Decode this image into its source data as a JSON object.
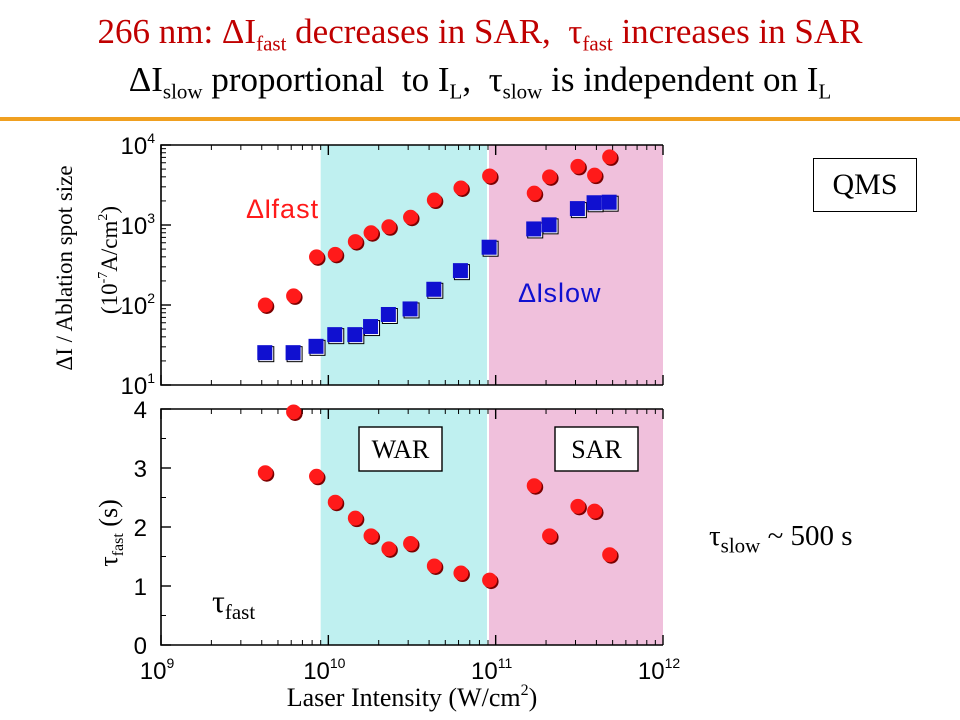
{
  "title": {
    "line1_prefix": "266 nm: ΔI",
    "line1_sub1": "fast",
    "line1_mid": " decreases in SAR,  τ",
    "line1_sub2": "fast",
    "line1_suffix": " increases in SAR",
    "line2_prefix": "ΔI",
    "line2_sub1": "slow",
    "line2_mid": " proportional  to I",
    "line2_sub2": "L",
    "line2_mid2": ",  τ",
    "line2_sub3": "slow",
    "line2_mid3": " is independent on I",
    "line2_sub4": "L"
  },
  "qms_label": "QMS",
  "tau_slow_note": {
    "prefix": "τ",
    "sub": "slow",
    "suffix": " ~ 500 s"
  },
  "colors": {
    "fast": "#ff1a1a",
    "slow": "#1010d0",
    "war_region": "#bff0f0",
    "sar_region": "#f0c0dc",
    "title_red": "#c00000",
    "rule": "#f0a020"
  },
  "chart_data": [
    {
      "type": "scatter",
      "panel": "top",
      "xscale": "log",
      "yscale": "log",
      "xlim": [
        1000000000.0,
        1000000000000.0
      ],
      "ylim": [
        10,
        10000
      ],
      "ylabel_line1": "ΔI / Ablation spot size",
      "ylabel_line2_prefix": "(10",
      "ylabel_line2_exp": "-7",
      "ylabel_line2_mid": "A/cm",
      "ylabel_line2_exp2": "2",
      "ylabel_line2_suffix": ")",
      "y_ticks": [
        {
          "value": 10,
          "base": "10",
          "exp": "1"
        },
        {
          "value": 100,
          "base": "10",
          "exp": "2"
        },
        {
          "value": 1000,
          "base": "10",
          "exp": "3"
        },
        {
          "value": 10000,
          "base": "10",
          "exp": "4"
        }
      ],
      "regions": [
        {
          "name": "WAR",
          "x_from": 9000000000.0,
          "x_to": 90000000000.0
        },
        {
          "name": "SAR",
          "x_from": 90000000000.0,
          "x_to": 1000000000000.0
        }
      ],
      "series": [
        {
          "name": "ΔI",
          "name_sub": "fast",
          "marker": "circle",
          "x": [
            4200000000.0,
            6200000000.0,
            8500000000.0,
            11000000000.0,
            14500000000.0,
            18000000000.0,
            23000000000.0,
            31000000000.0,
            43000000000.0,
            62000000000.0,
            92000000000.0,
            170000000000.0,
            210000000000.0,
            310000000000.0,
            390000000000.0,
            480000000000.0
          ],
          "y": [
            100,
            130,
            400,
            430,
            620,
            800,
            950,
            1250,
            2050,
            2900,
            4100,
            2500,
            4000,
            5400,
            4200,
            7100
          ]
        },
        {
          "name": "ΔI",
          "name_sub": "slow",
          "marker": "square",
          "x": [
            4200000000.0,
            6200000000.0,
            8500000000.0,
            11000000000.0,
            14500000000.0,
            18000000000.0,
            23000000000.0,
            31000000000.0,
            43000000000.0,
            62000000000.0,
            92000000000.0,
            170000000000.0,
            210000000000.0,
            310000000000.0,
            390000000000.0,
            480000000000.0
          ],
          "y": [
            25,
            25,
            30,
            42,
            42,
            53,
            75,
            88,
            155,
            265,
            520,
            880,
            990,
            1580,
            1870,
            1900
          ]
        }
      ]
    },
    {
      "type": "scatter",
      "panel": "bottom",
      "xscale": "log",
      "yscale": "linear",
      "xlim": [
        1000000000.0,
        1000000000000.0
      ],
      "ylim": [
        0,
        4
      ],
      "xlabel": "Laser Intensity (W/cm",
      "xlabel_exp": "2",
      "xlabel_suffix": ")",
      "ylabel": "τ",
      "ylabel_sub": "fast",
      "ylabel_unit": " (s)",
      "y_ticks": [
        "0",
        "1",
        "2",
        "3",
        "4"
      ],
      "x_ticks": [
        {
          "value": 1000000000.0,
          "base": "10",
          "exp": "9"
        },
        {
          "value": 10000000000.0,
          "base": "10",
          "exp": "10"
        },
        {
          "value": 100000000000.0,
          "base": "10",
          "exp": "11"
        },
        {
          "value": 1000000000000.0,
          "base": "10",
          "exp": "12"
        }
      ],
      "regions": [
        {
          "name": "WAR",
          "x_from": 9000000000.0,
          "x_to": 90000000000.0
        },
        {
          "name": "SAR",
          "x_from": 90000000000.0,
          "x_to": 1000000000000.0
        }
      ],
      "region_labels": [
        "WAR",
        "SAR"
      ],
      "series": [
        {
          "name": "τ",
          "name_sub": "fast",
          "marker": "circle",
          "x": [
            4200000000.0,
            6200000000.0,
            8500000000.0,
            11000000000.0,
            14500000000.0,
            18000000000.0,
            23000000000.0,
            31000000000.0,
            43000000000.0,
            62000000000.0,
            92000000000.0,
            170000000000.0,
            210000000000.0,
            310000000000.0,
            390000000000.0,
            480000000000.0
          ],
          "y": [
            2.92,
            3.95,
            2.86,
            2.42,
            2.15,
            1.85,
            1.63,
            1.72,
            1.34,
            1.22,
            1.1,
            2.7,
            1.85,
            2.35,
            2.27,
            1.53
          ]
        }
      ]
    }
  ]
}
